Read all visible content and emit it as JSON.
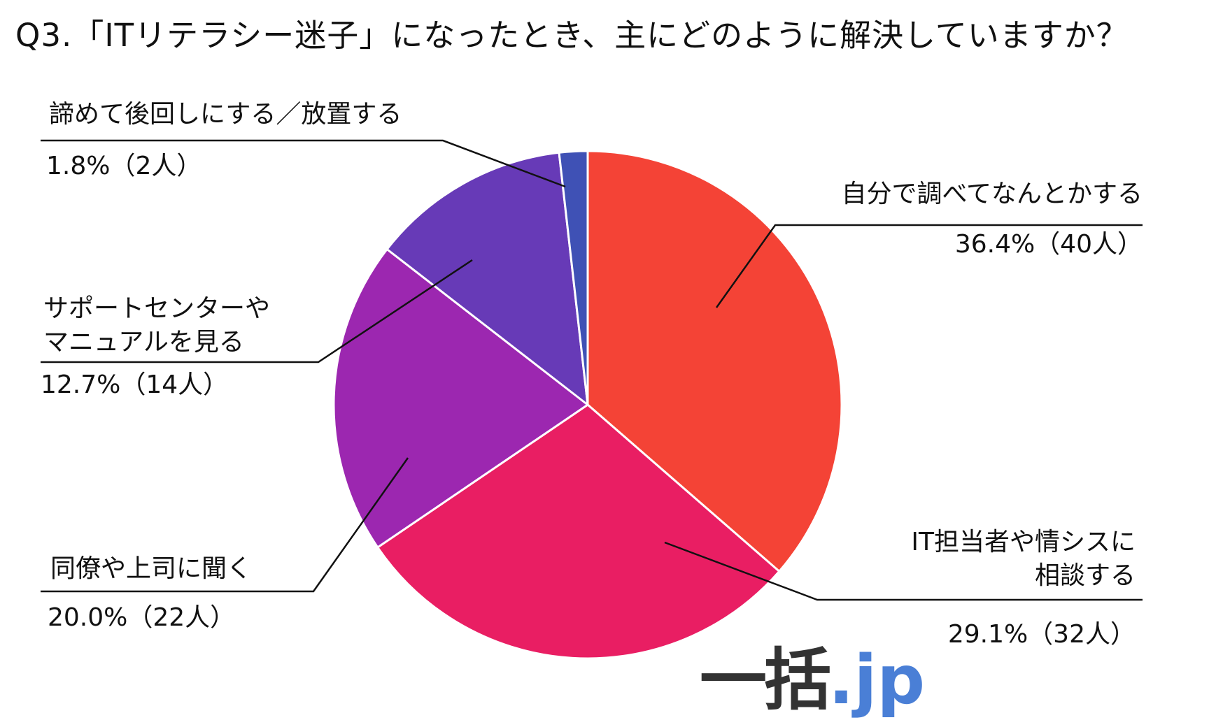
{
  "title": "Q3.「ITリテラシー迷子」になったとき、主にどのように解決していますか？",
  "chart_data": {
    "type": "pie",
    "start": "top",
    "direction": "clockwise",
    "slices": [
      {
        "label_lines": [
          "自分で調べてなんとかする"
        ],
        "percent": 36.4,
        "count": 40,
        "value_text": "36.4%（40人）",
        "color": "#f44336"
      },
      {
        "label_lines": [
          "IT担当者や情シスに",
          "相談する"
        ],
        "percent": 29.1,
        "count": 32,
        "value_text": "29.1%（32人）",
        "color": "#e91e63"
      },
      {
        "label_lines": [
          "同僚や上司に聞く"
        ],
        "percent": 20.0,
        "count": 22,
        "value_text": "20.0%（22人）",
        "color": "#9c27b0"
      },
      {
        "label_lines": [
          "サポートセンターや",
          "マニュアルを見る"
        ],
        "percent": 12.7,
        "count": 14,
        "value_text": "12.7%（14人）",
        "color": "#673ab7"
      },
      {
        "label_lines": [
          "諦めて後回しにする／放置する"
        ],
        "percent": 1.8,
        "count": 2,
        "value_text": "1.8%（2人）",
        "color": "#3f51b5"
      }
    ]
  },
  "logo": {
    "kanji": "一括",
    "suffix": ".jp"
  }
}
